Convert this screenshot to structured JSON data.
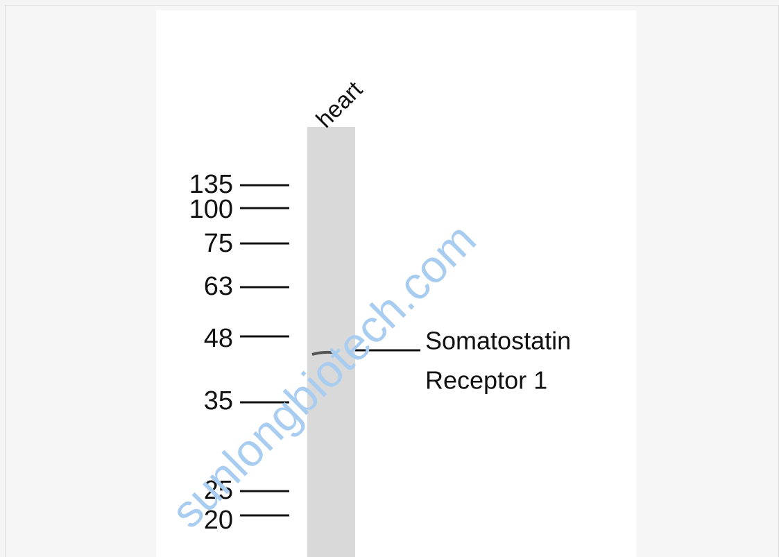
{
  "lane_label": "heart",
  "markers": [
    135,
    100,
    75,
    63,
    48,
    35,
    25,
    20
  ],
  "band_label": [
    "Somatostatin",
    "Receptor 1"
  ],
  "watermark": "sunlongbiotech.com"
}
